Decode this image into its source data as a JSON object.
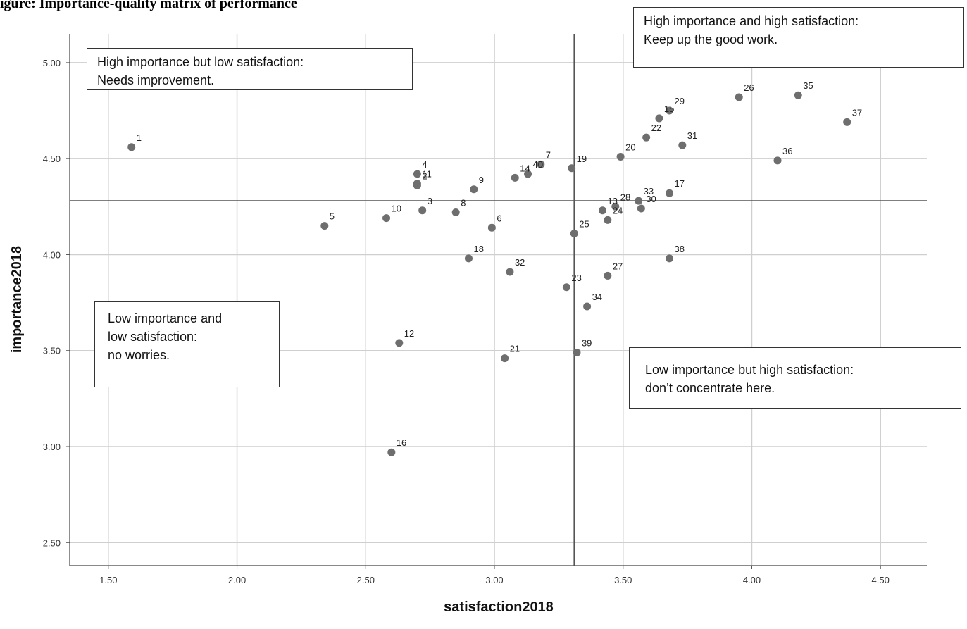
{
  "caption": "igure: Importance-quality matrix of performance",
  "quadrants": {
    "top_right": [
      "High importance and high satisfaction:",
      "Keep up the good work."
    ],
    "top_left": [
      "High importance but low satisfaction:",
      "Needs improvement."
    ],
    "bottom_left": [
      "Low importance and",
      "low satisfaction:",
      "no worries."
    ],
    "bottom_right": [
      "Low importance but high satisfaction:",
      "don’t concentrate here."
    ]
  },
  "chart_data": {
    "type": "scatter",
    "xlabel": "satisfaction2018",
    "ylabel": "importance2018",
    "xlim": [
      1.35,
      4.68
    ],
    "ylim": [
      2.38,
      5.15
    ],
    "x_ticks": [
      "1.50",
      "2.00",
      "2.50",
      "3.00",
      "3.50",
      "4.00",
      "4.50"
    ],
    "y_ticks": [
      "2.50",
      "3.00",
      "3.50",
      "4.00",
      "4.50",
      "5.00"
    ],
    "grid": true,
    "reference_lines": {
      "x": 3.31,
      "y": 4.28
    },
    "point_color": "#6e6e6e",
    "points": [
      {
        "label": "1",
        "x": 1.59,
        "y": 4.56
      },
      {
        "label": "2",
        "x": 2.7,
        "y": 4.36
      },
      {
        "label": "3",
        "x": 2.72,
        "y": 4.23
      },
      {
        "label": "4",
        "x": 2.7,
        "y": 4.42
      },
      {
        "label": "5",
        "x": 2.34,
        "y": 4.15
      },
      {
        "label": "6",
        "x": 2.99,
        "y": 4.14
      },
      {
        "label": "7",
        "x": 3.18,
        "y": 4.47
      },
      {
        "label": "8",
        "x": 2.85,
        "y": 4.22
      },
      {
        "label": "9",
        "x": 2.92,
        "y": 4.34
      },
      {
        "label": "10",
        "x": 2.58,
        "y": 4.19
      },
      {
        "label": "11",
        "x": 2.7,
        "y": 4.37
      },
      {
        "label": "12",
        "x": 2.63,
        "y": 3.54
      },
      {
        "label": "13",
        "x": 3.42,
        "y": 4.23
      },
      {
        "label": "14",
        "x": 3.08,
        "y": 4.4
      },
      {
        "label": "15",
        "x": 3.64,
        "y": 4.71
      },
      {
        "label": "16",
        "x": 2.6,
        "y": 2.97
      },
      {
        "label": "17",
        "x": 3.68,
        "y": 4.32
      },
      {
        "label": "18",
        "x": 2.9,
        "y": 3.98
      },
      {
        "label": "19",
        "x": 3.3,
        "y": 4.45
      },
      {
        "label": "20",
        "x": 3.49,
        "y": 4.51
      },
      {
        "label": "21",
        "x": 3.04,
        "y": 3.46
      },
      {
        "label": "22",
        "x": 3.59,
        "y": 4.61
      },
      {
        "label": "23",
        "x": 3.28,
        "y": 3.83
      },
      {
        "label": "24",
        "x": 3.44,
        "y": 4.18
      },
      {
        "label": "25",
        "x": 3.31,
        "y": 4.11
      },
      {
        "label": "26",
        "x": 3.95,
        "y": 4.82
      },
      {
        "label": "27",
        "x": 3.44,
        "y": 3.89
      },
      {
        "label": "28",
        "x": 3.47,
        "y": 4.25
      },
      {
        "label": "29",
        "x": 3.68,
        "y": 4.75
      },
      {
        "label": "30",
        "x": 3.57,
        "y": 4.24
      },
      {
        "label": "31",
        "x": 3.73,
        "y": 4.57
      },
      {
        "label": "32",
        "x": 3.06,
        "y": 3.91
      },
      {
        "label": "33",
        "x": 3.56,
        "y": 4.28
      },
      {
        "label": "34",
        "x": 3.36,
        "y": 3.73
      },
      {
        "label": "35",
        "x": 4.18,
        "y": 4.83
      },
      {
        "label": "36",
        "x": 4.1,
        "y": 4.49
      },
      {
        "label": "37",
        "x": 4.37,
        "y": 4.69
      },
      {
        "label": "38",
        "x": 3.68,
        "y": 3.98
      },
      {
        "label": "39",
        "x": 3.32,
        "y": 3.49
      },
      {
        "label": "40",
        "x": 3.13,
        "y": 4.42
      }
    ]
  }
}
